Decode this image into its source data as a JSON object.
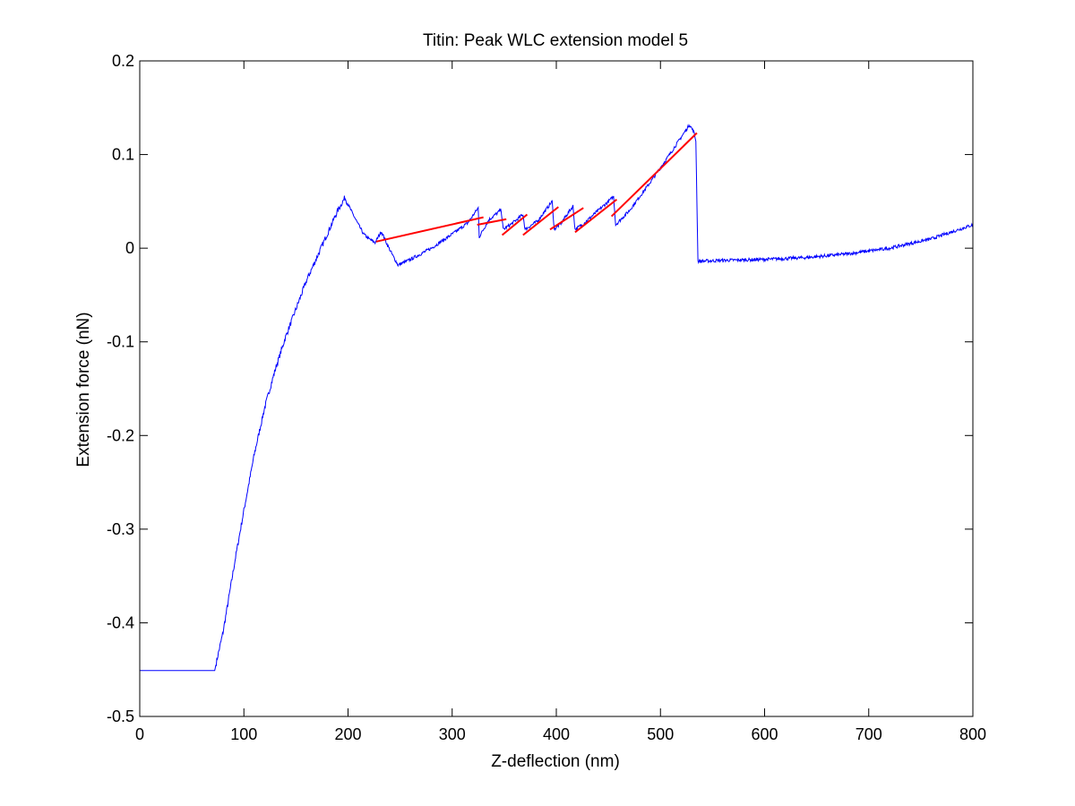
{
  "chart_data": {
    "type": "line",
    "title": "Titin: Peak WLC extension model 5",
    "xlabel": "Z-deflection (nm)",
    "ylabel": "Extension force (nN)",
    "xlim": [
      0,
      800
    ],
    "ylim": [
      -0.5,
      0.2
    ],
    "xticks": [
      0,
      100,
      200,
      300,
      400,
      500,
      600,
      700,
      800
    ],
    "xtick_labels": [
      "0",
      "100",
      "200",
      "300",
      "400",
      "500",
      "600",
      "700",
      "800"
    ],
    "yticks": [
      -0.5,
      -0.4,
      -0.3,
      -0.2,
      -0.1,
      0,
      0.1,
      0.2
    ],
    "ytick_labels": [
      "-0.5",
      "-0.4",
      "-0.3",
      "-0.2",
      "-0.1",
      "0",
      "0.1",
      "0.2"
    ],
    "grid": false,
    "colors": {
      "data": "#0000ff",
      "fit": "#ff0000",
      "axes": "#000000"
    },
    "series": [
      {
        "color": "#0000ff",
        "points": [
          [
            0,
            -0.451
          ],
          [
            72,
            -0.451
          ],
          [
            74,
            -0.44
          ],
          [
            80,
            -0.41
          ],
          [
            86,
            -0.37
          ],
          [
            92,
            -0.33
          ],
          [
            100,
            -0.28
          ],
          [
            110,
            -0.22
          ],
          [
            120,
            -0.17
          ],
          [
            130,
            -0.13
          ],
          [
            140,
            -0.095
          ],
          [
            150,
            -0.065
          ],
          [
            160,
            -0.035
          ],
          [
            170,
            -0.01
          ],
          [
            180,
            0.015
          ],
          [
            190,
            0.04
          ],
          [
            197,
            0.054
          ],
          [
            203,
            0.04
          ],
          [
            210,
            0.025
          ],
          [
            215,
            0.015
          ],
          [
            220,
            0.01
          ],
          [
            226,
            0.006
          ],
          [
            232,
            0.018
          ],
          [
            238,
            0.003
          ],
          [
            243,
            -0.008
          ],
          [
            248,
            -0.018
          ],
          [
            260,
            -0.012
          ],
          [
            280,
            0.0
          ],
          [
            300,
            0.015
          ],
          [
            315,
            0.027
          ],
          [
            325,
            0.043
          ],
          [
            326,
            0.012
          ],
          [
            335,
            0.03
          ],
          [
            347,
            0.041
          ],
          [
            349,
            0.02
          ],
          [
            357,
            0.026
          ],
          [
            368,
            0.036
          ],
          [
            370,
            0.02
          ],
          [
            382,
            0.029
          ],
          [
            396,
            0.05
          ],
          [
            398,
            0.02
          ],
          [
            404,
            0.026
          ],
          [
            416,
            0.045
          ],
          [
            418,
            0.02
          ],
          [
            426,
            0.026
          ],
          [
            455,
            0.055
          ],
          [
            457,
            0.025
          ],
          [
            470,
            0.04
          ],
          [
            490,
            0.07
          ],
          [
            510,
            0.102
          ],
          [
            528,
            0.132
          ],
          [
            532,
            0.124
          ],
          [
            534,
            0.115
          ],
          [
            536,
            -0.014
          ],
          [
            560,
            -0.013
          ],
          [
            600,
            -0.012
          ],
          [
            640,
            -0.01
          ],
          [
            680,
            -0.006
          ],
          [
            720,
            0.0
          ],
          [
            760,
            0.01
          ],
          [
            800,
            0.025
          ]
        ]
      }
    ],
    "fit_segments": [
      [
        [
          227,
          0.007
        ],
        [
          330,
          0.033
        ]
      ],
      [
        [
          324,
          0.025
        ],
        [
          352,
          0.031
        ]
      ],
      [
        [
          348,
          0.014
        ],
        [
          372,
          0.036
        ]
      ],
      [
        [
          368,
          0.014
        ],
        [
          402,
          0.044
        ]
      ],
      [
        [
          394,
          0.02
        ],
        [
          426,
          0.043
        ]
      ],
      [
        [
          418,
          0.017
        ],
        [
          458,
          0.052
        ]
      ],
      [
        [
          453,
          0.034
        ],
        [
          535,
          0.123
        ]
      ]
    ]
  }
}
